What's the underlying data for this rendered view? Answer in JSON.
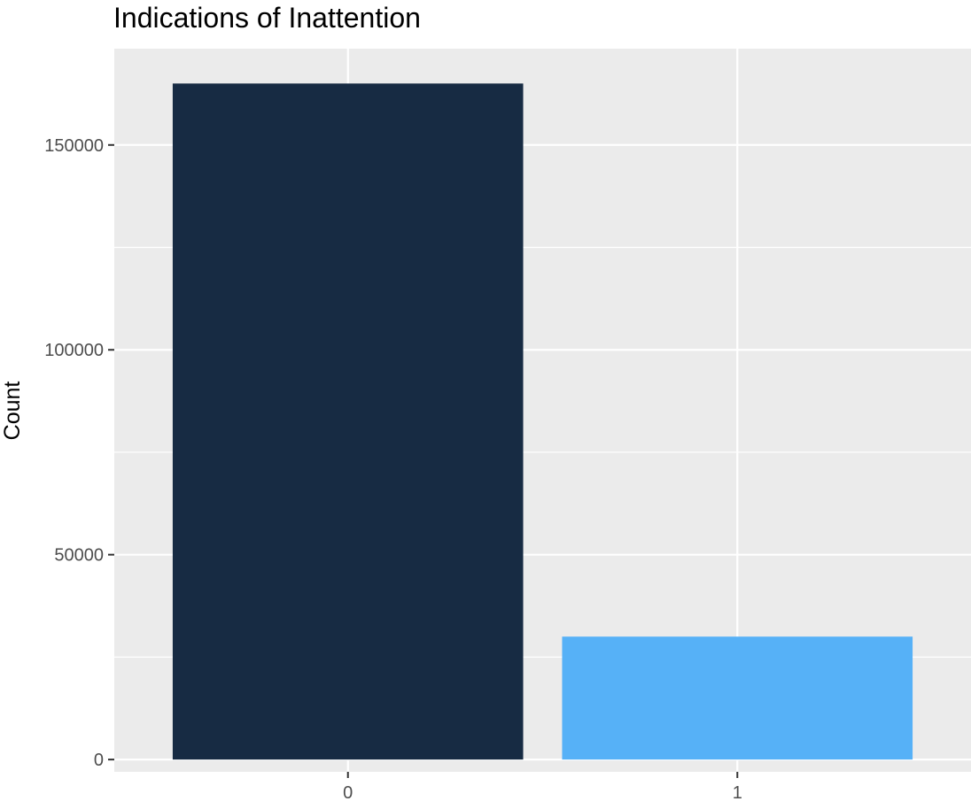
{
  "chart_data": {
    "type": "bar",
    "title": "Indications of Inattention",
    "xlabel": "",
    "ylabel": "Count",
    "categories": [
      "0",
      "1"
    ],
    "values": [
      165000,
      30000
    ],
    "bar_colors": [
      "#172b43",
      "#56b1f7"
    ],
    "ylim": [
      -3000,
      173500
    ],
    "yticks": [
      0,
      50000,
      100000,
      150000
    ],
    "ytick_labels": [
      "0",
      "50000",
      "100000",
      "150000"
    ],
    "grid": true,
    "panel_background": "#ebebeb",
    "gridline_color": "#ffffff",
    "legend": "none"
  }
}
